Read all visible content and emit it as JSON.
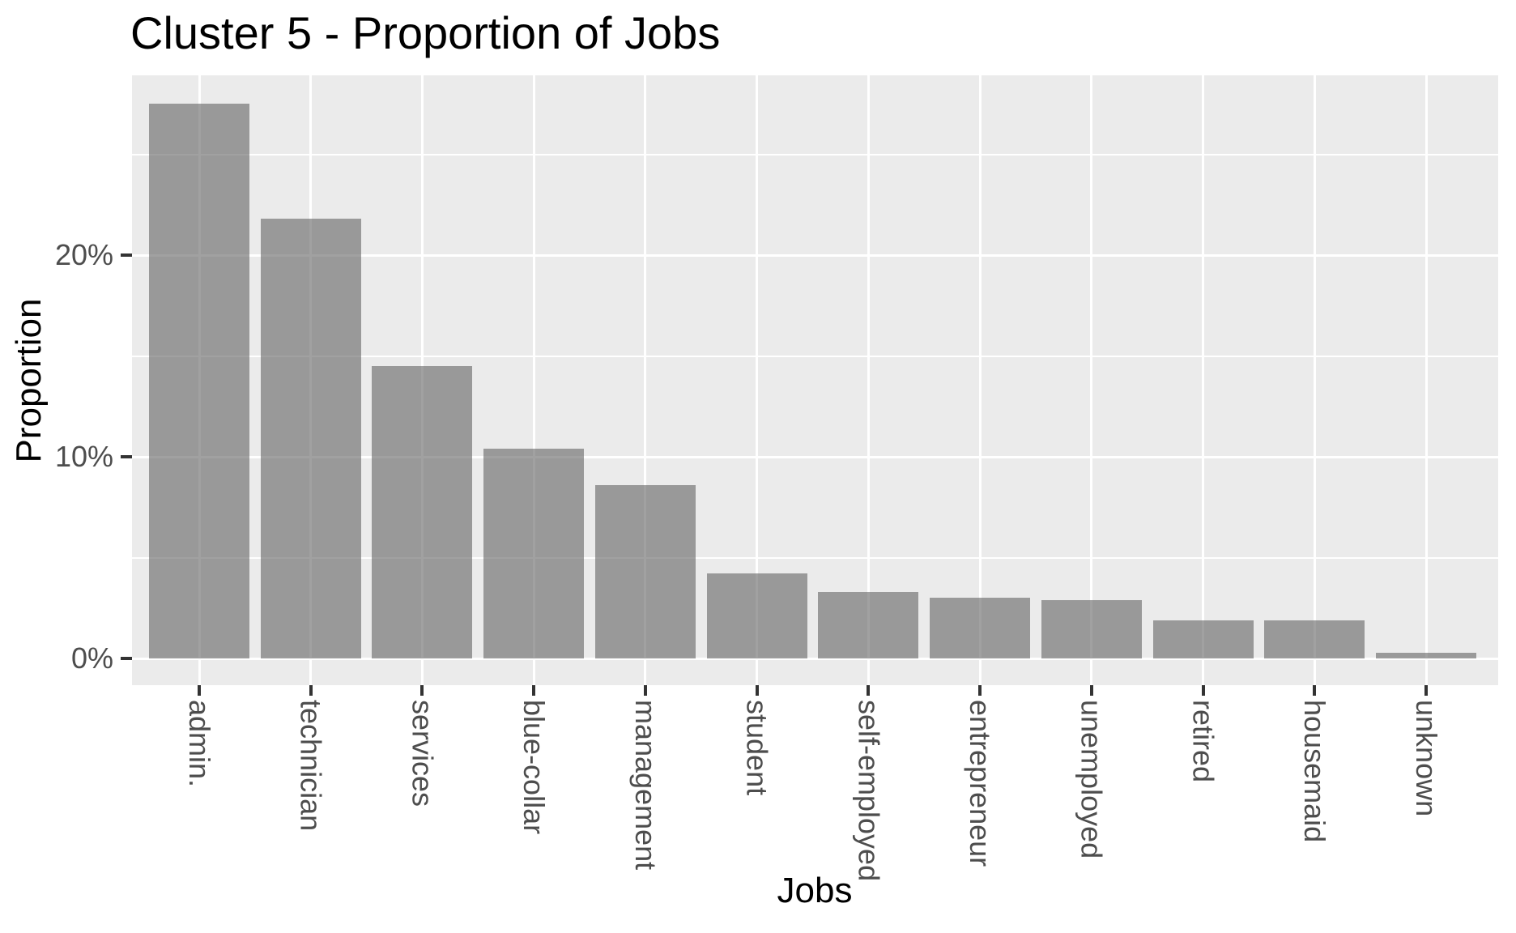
{
  "title": "Cluster 5 - Proportion of Jobs",
  "chart_data": {
    "type": "bar",
    "title": "Cluster 5 - Proportion of Jobs",
    "xlabel": "Jobs",
    "ylabel": "Proportion",
    "categories": [
      "admin.",
      "technician",
      "services",
      "blue-collar",
      "management",
      "student",
      "self-employed",
      "entrepreneur",
      "unemployed",
      "retired",
      "housemaid",
      "unknown"
    ],
    "values": [
      27.5,
      21.8,
      14.5,
      10.4,
      8.6,
      4.2,
      3.3,
      3.0,
      2.9,
      1.9,
      1.9,
      0.3
    ],
    "value_unit": "percent",
    "y_ticks": [
      {
        "value": 0,
        "label": "0%"
      },
      {
        "value": 10,
        "label": "10%"
      },
      {
        "value": 20,
        "label": "20%"
      }
    ],
    "y_minor_ticks": [
      5,
      15,
      25
    ],
    "ylim": [
      -1.3,
      28.9
    ],
    "grid": "on",
    "legend_position": "none",
    "colors": {
      "bar_fill": "rgba(104,104,104,0.62)",
      "bar_apparent": "#9B9B9B",
      "panel_background": "#EBEBEB",
      "gridline": "#FFFFFF",
      "tick_mark": "#333333",
      "tick_label": "#4D4D4D",
      "title_text": "#000000"
    }
  }
}
